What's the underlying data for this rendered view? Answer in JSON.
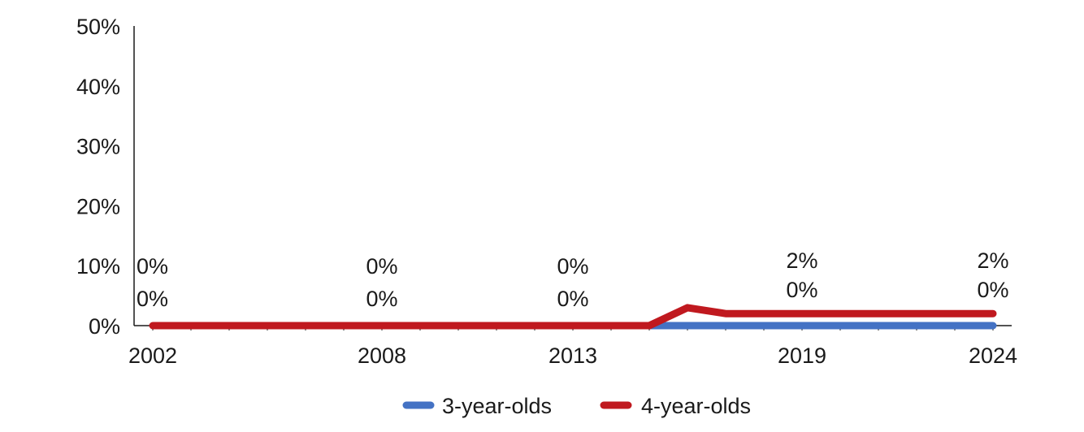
{
  "chart_data": {
    "type": "line",
    "title": "",
    "xlabel": "",
    "ylabel": "",
    "ylim": [
      0,
      50
    ],
    "x": [
      2002,
      2003,
      2004,
      2005,
      2006,
      2007,
      2008,
      2009,
      2010,
      2011,
      2012,
      2013,
      2014,
      2015,
      2016,
      2017,
      2018,
      2019,
      2020,
      2021,
      2022,
      2023,
      2024
    ],
    "y_tick_labels": [
      "0%",
      "10%",
      "20%",
      "30%",
      "40%",
      "50%"
    ],
    "x_tick_labels": [
      {
        "year": 2002,
        "label": "2002"
      },
      {
        "year": 2008,
        "label": "2008"
      },
      {
        "year": 2013,
        "label": "2013"
      },
      {
        "year": 2019,
        "label": "2019"
      },
      {
        "year": 2024,
        "label": "2024"
      }
    ],
    "series": [
      {
        "name": "3-year-olds",
        "color": "#4472C4",
        "values": [
          null,
          null,
          null,
          null,
          null,
          null,
          null,
          null,
          null,
          null,
          null,
          null,
          null,
          0,
          0,
          0,
          0,
          0,
          0,
          0,
          0,
          0,
          0
        ]
      },
      {
        "name": "4-year-olds",
        "color": "#C0191F",
        "values": [
          0,
          0,
          0,
          0,
          0,
          0,
          0,
          0,
          0,
          0,
          0,
          0,
          0,
          0,
          3,
          2,
          2,
          2,
          2,
          2,
          2,
          2,
          2
        ]
      }
    ],
    "data_labels": [
      {
        "year": 2002,
        "top": "0%",
        "bottom": "0%"
      },
      {
        "year": 2008,
        "top": "0%",
        "bottom": "0%"
      },
      {
        "year": 2013,
        "top": "0%",
        "bottom": "0%"
      },
      {
        "year": 2019,
        "top": "2%",
        "bottom": "0%"
      },
      {
        "year": 2024,
        "top": "2%",
        "bottom": "0%"
      }
    ],
    "grid": false,
    "legend_position": "bottom"
  }
}
